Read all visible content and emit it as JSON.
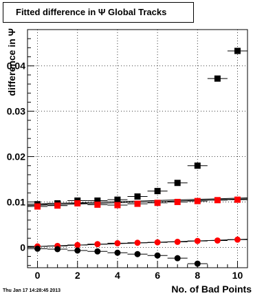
{
  "title": "Fitted difference in Ψ   Global Tracks",
  "datestamp": "Thu Jan 17 14:28:45 2013",
  "chart_data": {
    "type": "scatter",
    "xlabel": "No. of Bad Points",
    "ylabel": "difference in Ψ",
    "xlim": [
      -0.5,
      10.5
    ],
    "ylim": [
      -0.0045,
      0.048
    ],
    "xticks": [
      0,
      2,
      4,
      6,
      8,
      10
    ],
    "xtick_labels": [
      "0",
      "2",
      "4",
      "6",
      "8",
      "10"
    ],
    "yticks": [
      0,
      0.01,
      0.02,
      0.03,
      0.04
    ],
    "ytick_labels": [
      "0",
      "0.01",
      "0.02",
      "0.03",
      "0.04"
    ],
    "grid": true,
    "series": [
      {
        "marker": "square",
        "color": "#000000",
        "x": [
          0,
          1,
          2,
          3,
          4,
          5,
          6,
          7,
          8,
          9,
          10
        ],
        "y": [
          0.0095,
          0.0097,
          0.0103,
          0.0103,
          0.0105,
          0.0112,
          0.0124,
          0.0142,
          0.018,
          0.0372,
          0.0433
        ]
      },
      {
        "marker": "square",
        "color": "#ff0000",
        "x": [
          0,
          1,
          2,
          3,
          4,
          5,
          6,
          7,
          8,
          9,
          10
        ],
        "y": [
          0.009,
          0.0092,
          0.0097,
          0.0094,
          0.0093,
          0.0096,
          0.0098,
          0.01,
          0.0102,
          0.0104,
          0.0105
        ]
      },
      {
        "marker": "circle",
        "color": "#ff0000",
        "x": [
          0,
          1,
          2,
          3,
          4,
          5,
          6,
          7,
          8,
          9,
          10
        ],
        "y": [
          0.0002,
          0.0003,
          0.0005,
          0.0007,
          0.0009,
          0.001,
          0.0011,
          0.0012,
          0.0014,
          0.0015,
          0.0017
        ]
      },
      {
        "marker": "circle",
        "color": "#000000",
        "x": [
          0,
          1,
          2,
          3,
          4,
          5,
          6,
          7,
          8
        ],
        "y": [
          -0.0003,
          -0.0004,
          -0.0007,
          -0.0009,
          -0.0012,
          -0.0015,
          -0.0018,
          -0.0024,
          -0.0036
        ]
      }
    ],
    "fits": [
      {
        "color": "#000000",
        "y": [
          0.0095,
          0.0109
        ]
      },
      {
        "color": "#000000",
        "y": [
          0.0092,
          0.0107
        ]
      },
      {
        "color": "#000000",
        "y": [
          0.0001,
          0.0018
        ]
      }
    ]
  }
}
